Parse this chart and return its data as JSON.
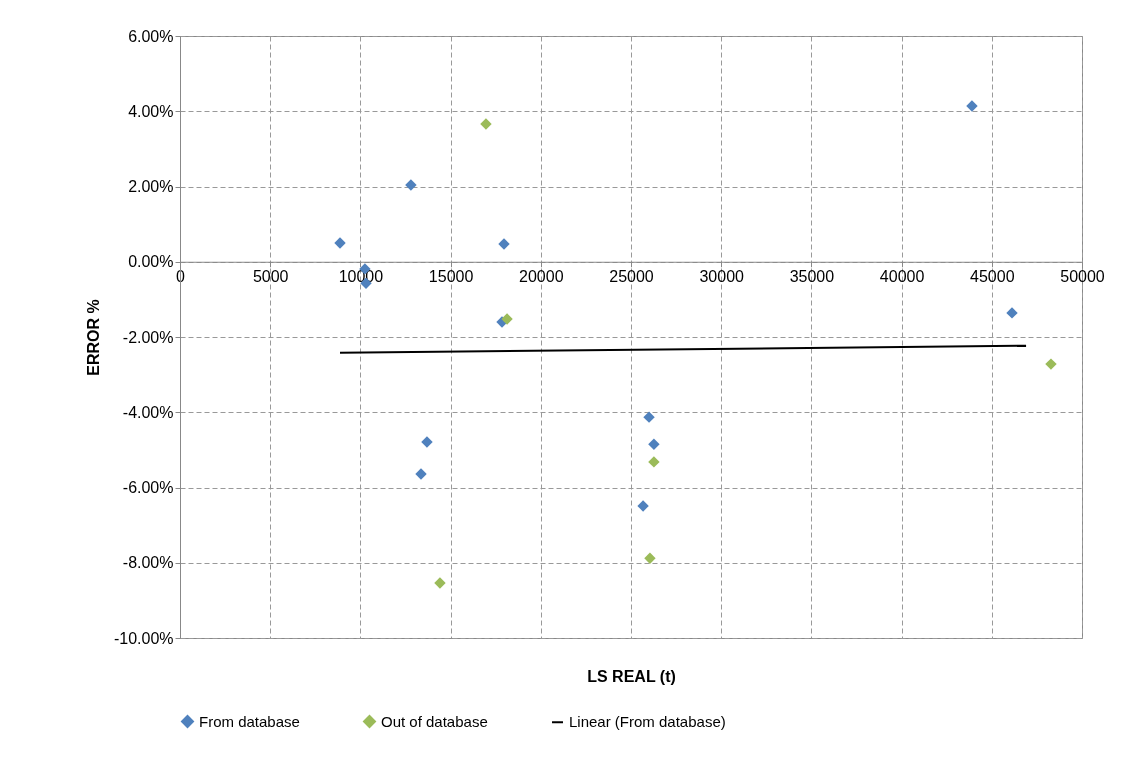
{
  "chart_data": {
    "type": "scatter",
    "xlabel": "LS REAL (t)",
    "ylabel": "ERROR %",
    "xlim": [
      0,
      50000
    ],
    "xticks": [
      0,
      5000,
      10000,
      15000,
      20000,
      25000,
      30000,
      35000,
      40000,
      45000,
      50000
    ],
    "ylim": [
      -10,
      6
    ],
    "yticks": [
      {
        "value": -10,
        "label": "-10.00%"
      },
      {
        "value": -8,
        "label": "-8.00%"
      },
      {
        "value": -6,
        "label": "-6.00%"
      },
      {
        "value": -4,
        "label": "-4.00%"
      },
      {
        "value": -2,
        "label": "-2.00%"
      },
      {
        "value": 0,
        "label": "0.00%"
      },
      {
        "value": 2,
        "label": "2.00%"
      },
      {
        "value": 4,
        "label": "4.00%"
      },
      {
        "value": 6,
        "label": "6.00%"
      }
    ],
    "grid": true,
    "legend": "bottom",
    "marker": "diamond",
    "series": [
      {
        "name": "From database",
        "color": "#4f81bd",
        "x": [
          8870,
          10250,
          10310,
          12800,
          17960,
          17850,
          43900,
          46120,
          13690,
          13360,
          26000,
          26270,
          25670
        ],
        "values": [
          0.5,
          -0.19,
          -0.57,
          2.04,
          0.47,
          -1.6,
          4.14,
          -1.36,
          -4.79,
          -5.64,
          -4.13,
          -4.85,
          -6.49
        ]
      },
      {
        "name": "Out of database",
        "color": "#9bbb59",
        "x": [
          16960,
          18130,
          48280,
          26270,
          26050,
          14410
        ],
        "values": [
          3.66,
          -1.52,
          -2.72,
          -5.32,
          -7.88,
          -8.54
        ]
      },
      {
        "name": "Linear (From database)",
        "type": "line",
        "color": "#000000",
        "line_style": "solid",
        "marker": "none",
        "x": [
          8870,
          46900
        ],
        "values": [
          -2.42,
          -2.23
        ]
      }
    ]
  }
}
